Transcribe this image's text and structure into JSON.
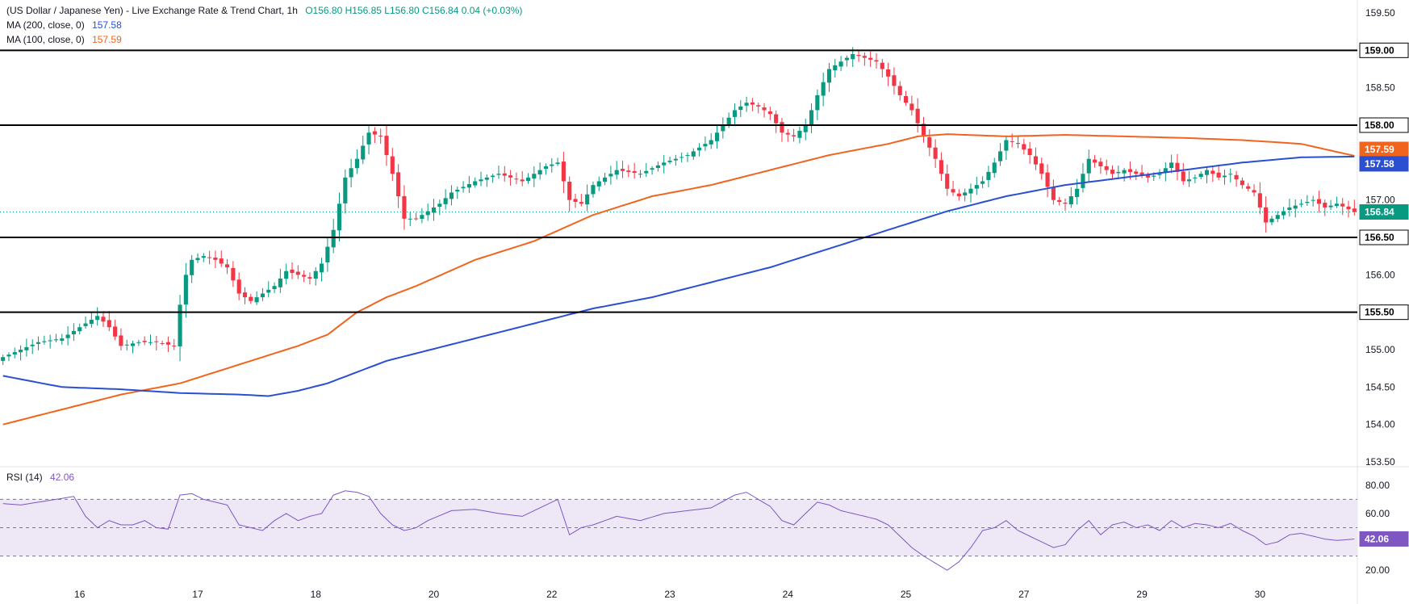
{
  "header": {
    "symbol": "(US Dollar / Japanese Yen) - Live Exchange Rate & Trend Chart, 1h",
    "ohlc": "O156.80  H156.85  L156.80  C156.84  0.04 (+0.03%)",
    "ma200_label": "MA (200, close, 0)",
    "ma200_value": "157.58",
    "ma100_label": "MA (100, close, 0)",
    "ma100_value": "157.59"
  },
  "rsi_legend": {
    "label": "RSI (14)",
    "value": "42.06"
  },
  "colors": {
    "up": "#089981",
    "down": "#f23645",
    "ma200": "#2a4fd1",
    "ma100": "#f0641e",
    "rsi": "#7e57c2",
    "rsi_band": "#ede7f6",
    "level": "#000000",
    "price_tag": "#089981"
  },
  "chart_data": [
    {
      "type": "candlestick",
      "title": "(US Dollar / Japanese Yen) - Live Exchange Rate & Trend Chart, 1h",
      "ylim": [
        153.5,
        159.5
      ],
      "y_ticks": [
        "159.50",
        "159.00",
        "158.50",
        "158.00",
        "157.50",
        "157.00",
        "156.50",
        "156.00",
        "155.50",
        "155.00",
        "154.50",
        "154.00",
        "153.50"
      ],
      "y_tick_values": [
        159.5,
        159.0,
        158.5,
        158.0,
        157.5,
        157.0,
        156.5,
        156.0,
        155.5,
        155.0,
        154.5,
        154.0,
        153.5
      ],
      "x_labels": [
        "16",
        "17",
        "18",
        "20",
        "22",
        "23",
        "24",
        "25",
        "27",
        "29",
        "30"
      ],
      "x_label_index": [
        13,
        33,
        53,
        73,
        93,
        113,
        133,
        153,
        173,
        193,
        213
      ],
      "bar_count": 230,
      "horizontal_levels": [
        {
          "value": 159.0,
          "label": "159.00"
        },
        {
          "value": 158.0,
          "label": "158.00"
        },
        {
          "value": 156.5,
          "label": "156.50"
        },
        {
          "value": 155.5,
          "label": "155.50"
        }
      ],
      "last_price": {
        "value": 156.84,
        "label": "156.84"
      },
      "close_anchors": [
        [
          0,
          154.9
        ],
        [
          3,
          155.0
        ],
        [
          6,
          155.1
        ],
        [
          10,
          155.15
        ],
        [
          14,
          155.35
        ],
        [
          16,
          155.45
        ],
        [
          18,
          155.3
        ],
        [
          20,
          155.05
        ],
        [
          23,
          155.1
        ],
        [
          26,
          155.1
        ],
        [
          29,
          155.05
        ],
        [
          30,
          155.6
        ],
        [
          31,
          156.0
        ],
        [
          32,
          156.2
        ],
        [
          34,
          156.25
        ],
        [
          36,
          156.2
        ],
        [
          38,
          156.1
        ],
        [
          40,
          155.75
        ],
        [
          42,
          155.65
        ],
        [
          44,
          155.75
        ],
        [
          46,
          155.85
        ],
        [
          48,
          156.05
        ],
        [
          50,
          156.0
        ],
        [
          52,
          155.95
        ],
        [
          54,
          156.15
        ],
        [
          56,
          156.6
        ],
        [
          58,
          157.3
        ],
        [
          60,
          157.55
        ],
        [
          62,
          157.9
        ],
        [
          64,
          157.85
        ],
        [
          66,
          157.35
        ],
        [
          68,
          156.75
        ],
        [
          70,
          156.75
        ],
        [
          72,
          156.85
        ],
        [
          74,
          156.95
        ],
        [
          76,
          157.1
        ],
        [
          80,
          157.25
        ],
        [
          84,
          157.35
        ],
        [
          88,
          157.25
        ],
        [
          92,
          157.45
        ],
        [
          94,
          157.5
        ],
        [
          96,
          157.0
        ],
        [
          98,
          156.95
        ],
        [
          100,
          157.2
        ],
        [
          104,
          157.4
        ],
        [
          108,
          157.35
        ],
        [
          112,
          157.5
        ],
        [
          116,
          157.6
        ],
        [
          120,
          157.8
        ],
        [
          122,
          158.0
        ],
        [
          124,
          158.2
        ],
        [
          126,
          158.3
        ],
        [
          128,
          158.25
        ],
        [
          130,
          158.15
        ],
        [
          132,
          157.9
        ],
        [
          134,
          157.85
        ],
        [
          136,
          158.0
        ],
        [
          138,
          158.4
        ],
        [
          140,
          158.75
        ],
        [
          142,
          158.85
        ],
        [
          144,
          158.95
        ],
        [
          146,
          158.9
        ],
        [
          148,
          158.85
        ],
        [
          150,
          158.65
        ],
        [
          152,
          158.4
        ],
        [
          154,
          158.2
        ],
        [
          156,
          157.85
        ],
        [
          158,
          157.55
        ],
        [
          160,
          157.15
        ],
        [
          162,
          157.05
        ],
        [
          164,
          157.15
        ],
        [
          166,
          157.25
        ],
        [
          168,
          157.5
        ],
        [
          170,
          157.8
        ],
        [
          172,
          157.75
        ],
        [
          174,
          157.6
        ],
        [
          176,
          157.35
        ],
        [
          178,
          157.0
        ],
        [
          180,
          156.95
        ],
        [
          182,
          157.15
        ],
        [
          184,
          157.55
        ],
        [
          186,
          157.45
        ],
        [
          188,
          157.35
        ],
        [
          190,
          157.4
        ],
        [
          192,
          157.35
        ],
        [
          194,
          157.3
        ],
        [
          196,
          157.35
        ],
        [
          198,
          157.5
        ],
        [
          200,
          157.25
        ],
        [
          202,
          157.3
        ],
        [
          204,
          157.4
        ],
        [
          206,
          157.3
        ],
        [
          208,
          157.35
        ],
        [
          210,
          157.2
        ],
        [
          212,
          157.1
        ],
        [
          214,
          156.7
        ],
        [
          216,
          156.8
        ],
        [
          218,
          156.9
        ],
        [
          220,
          156.95
        ],
        [
          222,
          157.0
        ],
        [
          224,
          156.9
        ],
        [
          226,
          156.95
        ],
        [
          229,
          156.84
        ]
      ],
      "ma200_anchors": [
        [
          0,
          154.65
        ],
        [
          10,
          154.5
        ],
        [
          20,
          154.47
        ],
        [
          30,
          154.42
        ],
        [
          40,
          154.4
        ],
        [
          45,
          154.38
        ],
        [
          50,
          154.45
        ],
        [
          55,
          154.55
        ],
        [
          60,
          154.7
        ],
        [
          65,
          154.85
        ],
        [
          70,
          154.95
        ],
        [
          80,
          155.15
        ],
        [
          90,
          155.35
        ],
        [
          100,
          155.55
        ],
        [
          110,
          155.7
        ],
        [
          120,
          155.9
        ],
        [
          130,
          156.1
        ],
        [
          140,
          156.35
        ],
        [
          150,
          156.6
        ],
        [
          160,
          156.85
        ],
        [
          170,
          157.05
        ],
        [
          180,
          157.2
        ],
        [
          190,
          157.3
        ],
        [
          200,
          157.4
        ],
        [
          210,
          157.5
        ],
        [
          220,
          157.57
        ],
        [
          229,
          157.58
        ]
      ],
      "ma100_anchors": [
        [
          0,
          154.0
        ],
        [
          10,
          154.2
        ],
        [
          20,
          154.4
        ],
        [
          30,
          154.55
        ],
        [
          40,
          154.8
        ],
        [
          50,
          155.05
        ],
        [
          55,
          155.2
        ],
        [
          60,
          155.5
        ],
        [
          65,
          155.7
        ],
        [
          70,
          155.85
        ],
        [
          80,
          156.2
        ],
        [
          90,
          156.45
        ],
        [
          100,
          156.8
        ],
        [
          110,
          157.05
        ],
        [
          120,
          157.2
        ],
        [
          130,
          157.4
        ],
        [
          140,
          157.6
        ],
        [
          150,
          157.75
        ],
        [
          155,
          157.85
        ],
        [
          160,
          157.88
        ],
        [
          170,
          157.85
        ],
        [
          180,
          157.87
        ],
        [
          190,
          157.85
        ],
        [
          200,
          157.83
        ],
        [
          210,
          157.8
        ],
        [
          220,
          157.75
        ],
        [
          229,
          157.59
        ]
      ]
    },
    {
      "type": "line",
      "title": "RSI (14)",
      "ylim": [
        15,
        85
      ],
      "y_ticks": [
        "80.00",
        "60.00",
        "20.00"
      ],
      "y_tick_values": [
        80,
        60,
        20
      ],
      "upper_band": 70,
      "mid_line": 50,
      "lower_band": 30,
      "last_value": {
        "value": 42.06,
        "label": "42.06"
      },
      "rsi_anchors": [
        [
          0,
          67
        ],
        [
          3,
          66
        ],
        [
          6,
          68
        ],
        [
          9,
          70
        ],
        [
          12,
          72
        ],
        [
          14,
          58
        ],
        [
          16,
          50
        ],
        [
          18,
          55
        ],
        [
          20,
          52
        ],
        [
          22,
          52
        ],
        [
          24,
          55
        ],
        [
          26,
          50
        ],
        [
          28,
          49
        ],
        [
          30,
          73
        ],
        [
          32,
          74
        ],
        [
          34,
          70
        ],
        [
          36,
          68
        ],
        [
          38,
          66
        ],
        [
          40,
          52
        ],
        [
          42,
          50
        ],
        [
          44,
          48
        ],
        [
          46,
          55
        ],
        [
          48,
          60
        ],
        [
          50,
          55
        ],
        [
          52,
          58
        ],
        [
          54,
          60
        ],
        [
          56,
          73
        ],
        [
          58,
          76
        ],
        [
          60,
          75
        ],
        [
          62,
          72
        ],
        [
          64,
          60
        ],
        [
          66,
          52
        ],
        [
          68,
          48
        ],
        [
          70,
          50
        ],
        [
          72,
          55
        ],
        [
          76,
          62
        ],
        [
          80,
          63
        ],
        [
          84,
          60
        ],
        [
          88,
          58
        ],
        [
          92,
          66
        ],
        [
          94,
          70
        ],
        [
          96,
          45
        ],
        [
          98,
          50
        ],
        [
          100,
          52
        ],
        [
          104,
          58
        ],
        [
          108,
          55
        ],
        [
          112,
          60
        ],
        [
          116,
          62
        ],
        [
          120,
          64
        ],
        [
          124,
          73
        ],
        [
          126,
          75
        ],
        [
          128,
          70
        ],
        [
          130,
          65
        ],
        [
          132,
          55
        ],
        [
          134,
          52
        ],
        [
          136,
          60
        ],
        [
          138,
          68
        ],
        [
          140,
          66
        ],
        [
          142,
          62
        ],
        [
          144,
          60
        ],
        [
          146,
          58
        ],
        [
          148,
          56
        ],
        [
          150,
          52
        ],
        [
          152,
          44
        ],
        [
          154,
          36
        ],
        [
          156,
          30
        ],
        [
          158,
          25
        ],
        [
          160,
          20
        ],
        [
          162,
          26
        ],
        [
          164,
          36
        ],
        [
          166,
          48
        ],
        [
          168,
          50
        ],
        [
          170,
          55
        ],
        [
          172,
          48
        ],
        [
          174,
          44
        ],
        [
          176,
          40
        ],
        [
          178,
          36
        ],
        [
          180,
          38
        ],
        [
          182,
          48
        ],
        [
          184,
          55
        ],
        [
          186,
          45
        ],
        [
          188,
          52
        ],
        [
          190,
          54
        ],
        [
          192,
          50
        ],
        [
          194,
          52
        ],
        [
          196,
          48
        ],
        [
          198,
          55
        ],
        [
          200,
          50
        ],
        [
          202,
          53
        ],
        [
          204,
          52
        ],
        [
          206,
          50
        ],
        [
          208,
          53
        ],
        [
          210,
          48
        ],
        [
          212,
          44
        ],
        [
          214,
          38
        ],
        [
          216,
          40
        ],
        [
          218,
          45
        ],
        [
          220,
          46
        ],
        [
          222,
          44
        ],
        [
          224,
          42
        ],
        [
          226,
          41
        ],
        [
          229,
          42.06
        ]
      ]
    }
  ]
}
